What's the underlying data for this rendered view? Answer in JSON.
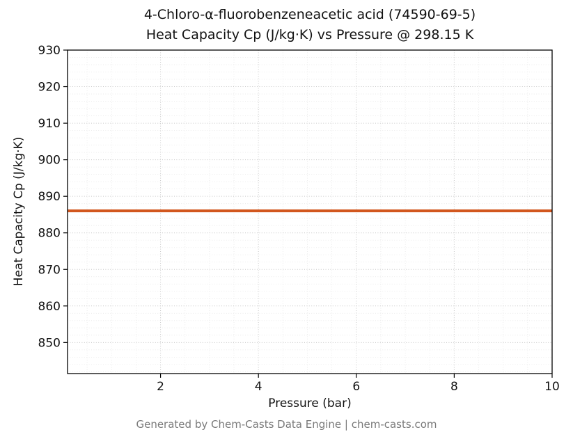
{
  "title": {
    "line1": "4-Chloro-α-fluorobenzeneacetic acid (74590-69-5)",
    "line2": "Heat Capacity Cp (J/kg·K) vs Pressure @ 298.15 K"
  },
  "footer": "Generated by Chem-Casts Data Engine | chem-casts.com",
  "chart_data": {
    "type": "line",
    "title": "4-Chloro-α-fluorobenzeneacetic acid (74590-69-5) — Heat Capacity Cp (J/kg·K) vs Pressure @ 298.15 K",
    "xlabel": "Pressure (bar)",
    "ylabel": "Heat Capacity Cp (J/kg·K)",
    "xlim": [
      0.1,
      10
    ],
    "ylim": [
      841.5,
      930
    ],
    "x_ticks": [
      2,
      4,
      6,
      8,
      10
    ],
    "y_ticks": [
      850,
      860,
      870,
      880,
      890,
      900,
      910,
      920,
      930
    ],
    "x_minor_step": 0.5,
    "y_minor_step": 2,
    "grid": true,
    "legend_position": "none",
    "series": [
      {
        "name": "Heat Capacity Cp",
        "x": [
          0.1,
          10
        ],
        "y": [
          886,
          886
        ],
        "color": "#d2571e",
        "linewidth": 4
      }
    ]
  },
  "styles": {
    "line_color": "#d2571e",
    "grid_major": "#c9c9c9",
    "grid_minor": "#e7e7e7",
    "axis_color": "#000000",
    "footer_color": "#7a7a7a",
    "background": "#ffffff"
  }
}
